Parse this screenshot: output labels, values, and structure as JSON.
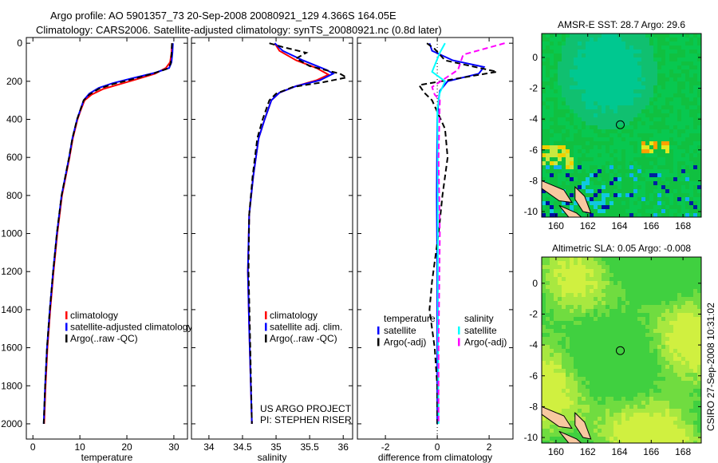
{
  "header": {
    "line1": "Argo profile: AO 5901357_73 20-Sep-2008 20080921_129 4.366S 164.05E",
    "line2": "Climatology: CARS2006. Satellite-adjusted climatology: synTS_20080921.nc (0.8d later)"
  },
  "side_label": "CSIRO 27-Sep-2008 10:31:02",
  "annotations": {
    "project": "US ARGO PROJECT",
    "pi": "PI: STEPHEN RISER"
  },
  "colors": {
    "climatology": "#ff0000",
    "satellite": "#0000ff",
    "argo": "#000000",
    "sal_satellite": "#00ffff",
    "sal_argo": "#ff00ff"
  },
  "chart_data": [
    {
      "type": "line",
      "id": "temp",
      "xlabel": "temperature",
      "ylabel": "",
      "xlim": [
        -1.4,
        32.9
      ],
      "ylim": [
        -30,
        2080
      ],
      "yreversed": true,
      "xticks": [
        0,
        10,
        20,
        30
      ],
      "yticks": [
        0,
        200,
        400,
        600,
        800,
        1000,
        1200,
        1400,
        1600,
        1800,
        2000
      ],
      "legend": [
        "climatology",
        "satellite-adjusted climatology",
        "Argo(..raw -QC)"
      ],
      "series": [
        {
          "name": "climatology",
          "color": "#ff0000",
          "dash": false,
          "points": [
            [
              29.6,
              0
            ],
            [
              29.5,
              50
            ],
            [
              29.2,
              100
            ],
            [
              28.3,
              130
            ],
            [
              26,
              160
            ],
            [
              22,
              190
            ],
            [
              18.5,
              215
            ],
            [
              15,
              240
            ],
            [
              12.5,
              270
            ],
            [
              11,
              300
            ],
            [
              10.2,
              350
            ],
            [
              9.5,
              400
            ],
            [
              8.5,
              500
            ],
            [
              7.8,
              600
            ],
            [
              7,
              700
            ],
            [
              6.2,
              800
            ],
            [
              5.2,
              1000
            ],
            [
              4.4,
              1200
            ],
            [
              3.7,
              1400
            ],
            [
              3.1,
              1600
            ],
            [
              2.7,
              1800
            ],
            [
              2.4,
              2000
            ]
          ]
        },
        {
          "name": "satellite-adjusted climatology",
          "color": "#0000ff",
          "dash": false,
          "points": [
            [
              29.8,
              0
            ],
            [
              29.7,
              50
            ],
            [
              29.5,
              100
            ],
            [
              29,
              130
            ],
            [
              26,
              155
            ],
            [
              21,
              185
            ],
            [
              17,
              210
            ],
            [
              14,
              235
            ],
            [
              12,
              265
            ],
            [
              10.8,
              300
            ],
            [
              10.1,
              350
            ],
            [
              9.4,
              400
            ],
            [
              8.4,
              500
            ],
            [
              7.7,
              600
            ],
            [
              6.9,
              700
            ],
            [
              6.1,
              800
            ],
            [
              5.1,
              1000
            ],
            [
              4.3,
              1200
            ],
            [
              3.6,
              1400
            ],
            [
              3.0,
              1600
            ],
            [
              2.6,
              1800
            ],
            [
              2.3,
              2000
            ]
          ]
        },
        {
          "name": "Argo(..raw -QC)",
          "color": "#000000",
          "dash": true,
          "points": [
            [
              29.6,
              0
            ],
            [
              29.5,
              60
            ],
            [
              29.3,
              110
            ],
            [
              28.5,
              135
            ],
            [
              25.5,
              160
            ],
            [
              21,
              190
            ],
            [
              17,
              215
            ],
            [
              14,
              240
            ],
            [
              12,
              270
            ],
            [
              10.8,
              300
            ],
            [
              10.1,
              350
            ],
            [
              9.4,
              400
            ],
            [
              8.4,
              500
            ],
            [
              7.7,
              600
            ],
            [
              6.9,
              700
            ],
            [
              6.1,
              800
            ],
            [
              5.1,
              1000
            ],
            [
              4.3,
              1200
            ],
            [
              3.6,
              1400
            ],
            [
              3.0,
              1600
            ],
            [
              2.6,
              1800
            ],
            [
              2.3,
              2000
            ]
          ]
        }
      ]
    },
    {
      "type": "line",
      "id": "sal",
      "xlabel": "salinity",
      "xlim": [
        33.74,
        36.14
      ],
      "ylim": [
        -30,
        2080
      ],
      "yreversed": true,
      "xticks": [
        34,
        34.5,
        35,
        35.5,
        36
      ],
      "yticks": [
        0,
        200,
        400,
        600,
        800,
        1000,
        1200,
        1400,
        1600,
        1800,
        2000
      ],
      "legend": [
        "climatology",
        "satellite adj. clim.",
        "Argo(..raw -QC)"
      ],
      "series": [
        {
          "name": "climatology",
          "color": "#ff0000",
          "dash": false,
          "points": [
            [
              34.98,
              0
            ],
            [
              35.05,
              40
            ],
            [
              35.3,
              90
            ],
            [
              35.6,
              130
            ],
            [
              35.78,
              165
            ],
            [
              35.6,
              195
            ],
            [
              35.3,
              225
            ],
            [
              35.05,
              260
            ],
            [
              34.93,
              300
            ],
            [
              34.83,
              400
            ],
            [
              34.74,
              500
            ],
            [
              34.66,
              700
            ],
            [
              34.6,
              900
            ],
            [
              34.58,
              1200
            ],
            [
              34.6,
              1500
            ],
            [
              34.64,
              2000
            ]
          ]
        },
        {
          "name": "satellite adj. clim.",
          "color": "#0000ff",
          "dash": false,
          "points": [
            [
              34.98,
              0
            ],
            [
              35.1,
              40
            ],
            [
              35.4,
              90
            ],
            [
              35.75,
              140
            ],
            [
              35.85,
              160
            ],
            [
              35.65,
              195
            ],
            [
              35.3,
              225
            ],
            [
              35.05,
              260
            ],
            [
              34.93,
              300
            ],
            [
              34.83,
              400
            ],
            [
              34.74,
              500
            ],
            [
              34.66,
              700
            ],
            [
              34.6,
              900
            ],
            [
              34.58,
              1200
            ],
            [
              34.6,
              1500
            ],
            [
              34.64,
              2000
            ]
          ]
        },
        {
          "name": "Argo(..raw -QC)",
          "color": "#000000",
          "dash": true,
          "points": [
            [
              34.9,
              0
            ],
            [
              35.1,
              20
            ],
            [
              35.45,
              50
            ],
            [
              35.3,
              80
            ],
            [
              35.5,
              120
            ],
            [
              35.95,
              160
            ],
            [
              36.05,
              180
            ],
            [
              35.7,
              205
            ],
            [
              35.25,
              230
            ],
            [
              35.0,
              265
            ],
            [
              34.9,
              300
            ],
            [
              34.8,
              400
            ],
            [
              34.72,
              500
            ],
            [
              34.65,
              700
            ],
            [
              34.6,
              900
            ],
            [
              34.59,
              1200
            ],
            [
              34.61,
              1500
            ],
            [
              34.64,
              2000
            ]
          ]
        }
      ],
      "annotations": [
        "US ARGO PROJECT",
        "PI: STEPHEN RISER"
      ]
    },
    {
      "type": "line",
      "id": "diff",
      "xlabel": "difference from climatology",
      "xlim": [
        -3.08,
        2.92
      ],
      "ylim": [
        -30,
        2080
      ],
      "yreversed": true,
      "xticks": [
        -2,
        0,
        2
      ],
      "yticks": [
        0,
        200,
        400,
        600,
        800,
        1000,
        1200,
        1400,
        1600,
        1800,
        2000
      ],
      "legend_titles": [
        "temperature",
        "salinity"
      ],
      "legend": [
        "satellite",
        "Argo(-adj)",
        "satellite",
        "Argo(-adj)"
      ],
      "series": [
        {
          "name": "temperature satellite",
          "color": "#0000ff",
          "dash": false,
          "points": [
            [
              -0.3,
              0
            ],
            [
              -0.2,
              40
            ],
            [
              0.6,
              90
            ],
            [
              1.8,
              125
            ],
            [
              1.6,
              160
            ],
            [
              0.4,
              200
            ],
            [
              0.1,
              250
            ],
            [
              0.05,
              300
            ],
            [
              0,
              400
            ],
            [
              -0.02,
              800
            ],
            [
              0,
              1200
            ],
            [
              0,
              1600
            ],
            [
              0,
              2000
            ]
          ]
        },
        {
          "name": "temperature Argo(-adj)",
          "color": "#000000",
          "dash": true,
          "points": [
            [
              -0.4,
              0
            ],
            [
              -0.1,
              30
            ],
            [
              0.3,
              90
            ],
            [
              2.3,
              150
            ],
            [
              1.0,
              180
            ],
            [
              -0.7,
              220
            ],
            [
              -0.5,
              260
            ],
            [
              -0.2,
              300
            ],
            [
              0.3,
              450
            ],
            [
              0.4,
              600
            ],
            [
              0.2,
              800
            ],
            [
              0.05,
              1000
            ],
            [
              -0.2,
              1250
            ],
            [
              -0.3,
              1400
            ],
            [
              -0.1,
              1600
            ],
            [
              0,
              1800
            ],
            [
              0,
              2000
            ]
          ]
        },
        {
          "name": "salinity satellite",
          "color": "#00ffff",
          "dash": false,
          "points": [
            [
              0.3,
              0
            ],
            [
              0.1,
              50
            ],
            [
              -0.2,
              150
            ],
            [
              0.3,
              200
            ],
            [
              0.1,
              260
            ],
            [
              0.0,
              350
            ],
            [
              0.02,
              600
            ],
            [
              0.02,
              1000
            ],
            [
              0.03,
              1600
            ],
            [
              0.05,
              2000
            ]
          ]
        },
        {
          "name": "salinity Argo(-adj)",
          "color": "#ff00ff",
          "dash": true,
          "points": [
            [
              2.6,
              0
            ],
            [
              1.0,
              60
            ],
            [
              0.8,
              140
            ],
            [
              -0.2,
              230
            ],
            [
              -0.1,
              270
            ],
            [
              0.1,
              300
            ],
            [
              0.05,
              600
            ],
            [
              0.1,
              1000
            ],
            [
              0.05,
              1600
            ],
            [
              0.05,
              2000
            ]
          ]
        }
      ]
    },
    {
      "type": "heatmap",
      "id": "sst",
      "title": "AMSR-E SST: 28.7 Argo: 29.6",
      "xlim": [
        159.1,
        169.15
      ],
      "ylim": [
        -10.36,
        1.55
      ],
      "xticks": [
        160,
        162,
        164,
        166,
        168
      ],
      "yticks": [
        0,
        -2,
        -4,
        -6,
        -8,
        -10
      ],
      "marker": {
        "lon": 164.05,
        "lat": -4.366
      }
    },
    {
      "type": "heatmap",
      "id": "sla",
      "title": "Altimetric SLA: 0.05 Argo: -0.008",
      "xlim": [
        159.1,
        169.15
      ],
      "ylim": [
        -10.36,
        1.7
      ],
      "xticks": [
        160,
        162,
        164,
        166,
        168
      ],
      "yticks": [
        0,
        -2,
        -4,
        -6,
        -8,
        -10
      ],
      "marker": {
        "lon": 164.05,
        "lat": -4.366
      }
    }
  ]
}
